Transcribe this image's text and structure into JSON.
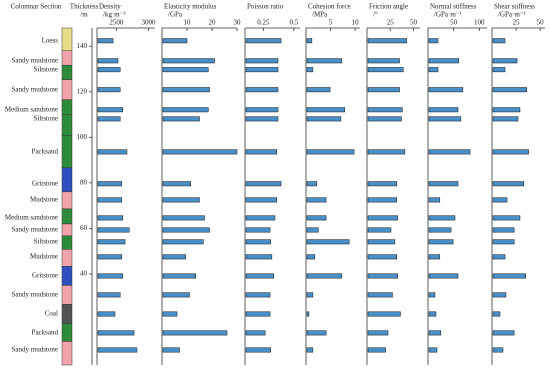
{
  "chart_data": {
    "type": "bar",
    "orientation": "horizontal",
    "column_title": "Columnar Section",
    "ylabel": "Thickness",
    "yunit": "/m",
    "ylim": [
      0,
      148
    ],
    "yticks": [
      40,
      60,
      80,
      100,
      120,
      140
    ],
    "bar_color": "#4a90c8",
    "layers": [
      "Loess",
      "Sandy mudstone",
      "Siltstone",
      "Sandy mudstone",
      "Medium sandstone",
      "Siltstone",
      "Packsand",
      "Gritstone",
      "Mudstone",
      "Medium sandstone",
      "Sandy mudstone",
      "Siltstone",
      "Mudstone",
      "Gritstone",
      "Sandy mudstone",
      "Coal",
      "Packsand",
      "Sandy mudstone"
    ],
    "layer_colors": [
      "#e8dc8a",
      "#f2a3ab",
      "#2e8b3a",
      "#f2a3ab",
      "#2e8b3a",
      "#2e8b3a",
      "#2e8b3a",
      "#3050c0",
      "#f2a3ab",
      "#2e8b3a",
      "#f2a3ab",
      "#2e8b3a",
      "#f2a3ab",
      "#3050c0",
      "#f2a3ab",
      "#555555",
      "#2e8b3a",
      "#f2a3ab"
    ],
    "y": [
      142.4,
      133.6,
      129.7,
      120.9,
      112.1,
      108.1,
      93.6,
      79.6,
      72.5,
      64.6,
      59.3,
      54.1,
      47.5,
      39.1,
      30.8,
      22.4,
      14.1,
      6.6
    ],
    "panels": [
      {
        "title": "Density",
        "unit": "/kg·m⁻³",
        "xlim": [
          2200,
          3100
        ],
        "xticks": [
          2500,
          3000
        ],
        "values": [
          2450,
          2525,
          2560,
          2560,
          2600,
          2560,
          2665,
          2585,
          2585,
          2600,
          2700,
          2635,
          2585,
          2600,
          2560,
          2480,
          2775,
          2820
        ]
      },
      {
        "title": "Elasticity modulus",
        "unit": "/GPa",
        "xlim": [
          0,
          30
        ],
        "xticks": [
          10,
          20,
          30
        ],
        "values": [
          10,
          21,
          18.5,
          19,
          18.5,
          15,
          30,
          11.5,
          15,
          17,
          19,
          16.5,
          9.5,
          13.5,
          11,
          6,
          26,
          7
        ]
      },
      {
        "title": "Poisson ratio",
        "unit": "",
        "xlim": [
          0.1,
          0.55
        ],
        "xticks": [
          0.25,
          0.5
        ],
        "values": [
          0.395,
          0.37,
          0.37,
          0.37,
          0.37,
          0.37,
          0.36,
          0.395,
          0.36,
          0.345,
          0.305,
          0.31,
          0.32,
          0.335,
          0.305,
          0.305,
          0.265,
          0.31
        ]
      },
      {
        "title": "Cohesion force",
        "unit": "/MPa",
        "xlim": [
          0,
          11
        ],
        "xticks": [
          5,
          10
        ],
        "values": [
          1.2,
          7.3,
          1.4,
          4.9,
          7.9,
          7.1,
          9.8,
          2.2,
          4.1,
          4.1,
          2.5,
          8.8,
          1.8,
          7.3,
          1.4,
          0.6,
          4.1,
          1.4
        ]
      },
      {
        "title": "Friction angle",
        "unit": "/°",
        "xlim": [
          0,
          57
        ],
        "xticks": [
          25,
          50
        ],
        "values": [
          42.6,
          35,
          39,
          35,
          38,
          37,
          40.7,
          32,
          32,
          33,
          25.8,
          30,
          32,
          33,
          27.4,
          36,
          22.6,
          20
        ]
      },
      {
        "title": "Normal stiffness",
        "unit": "/GPa·m⁻¹",
        "xlim": [
          0,
          115
        ],
        "xticks": [
          50,
          100
        ],
        "values": [
          19.5,
          60,
          19.5,
          68,
          58.5,
          64,
          82,
          58.5,
          23,
          52.6,
          45,
          49,
          23,
          58.5,
          13.6,
          15.6,
          25,
          17.5
        ]
      },
      {
        "title": "Shear stiffness",
        "unit": "/GPa·m⁻¹",
        "xlim": [
          0,
          55
        ],
        "xticks": [
          25,
          50
        ],
        "values": [
          13.5,
          26,
          13.5,
          36,
          29,
          27,
          38,
          33,
          15.6,
          29,
          23,
          23,
          13.5,
          35,
          14.5,
          8.3,
          23,
          11.4
        ]
      }
    ]
  }
}
